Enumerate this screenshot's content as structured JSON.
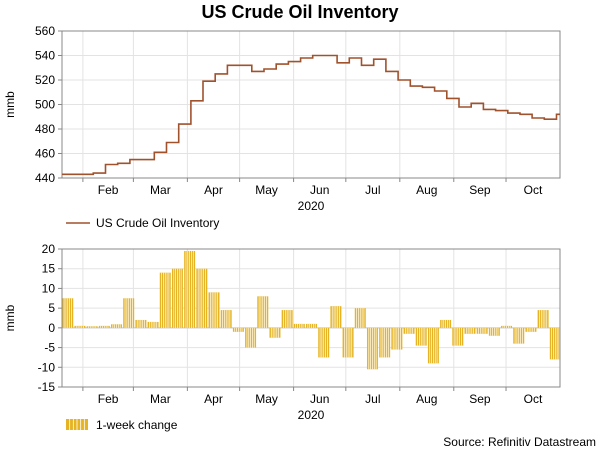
{
  "title": "US Crude Oil Inventory",
  "source": "Source: Refinitiv Datastream",
  "colors": {
    "line": "#a0522d",
    "bar": "#e6b422",
    "grid": "#e3e3e3"
  },
  "chart_data": [
    {
      "type": "line",
      "ylabel": "mmb",
      "xlabel": "2020",
      "ylim": [
        440,
        560
      ],
      "yticks": [
        440,
        460,
        480,
        500,
        520,
        540,
        560
      ],
      "month_ticks": [
        "Feb",
        "Mar",
        "Apr",
        "May",
        "Jun",
        "Jul",
        "Aug",
        "Sep",
        "Oct"
      ],
      "grid": true,
      "legend": "bottom-left",
      "series": [
        {
          "name": "US Crude Oil Inventory",
          "x": [
            "2020-01-24",
            "2020-01-31",
            "2020-02-07",
            "2020-02-14",
            "2020-02-21",
            "2020-02-28",
            "2020-03-06",
            "2020-03-13",
            "2020-03-20",
            "2020-03-27",
            "2020-04-03",
            "2020-04-10",
            "2020-04-17",
            "2020-04-24",
            "2020-05-01",
            "2020-05-08",
            "2020-05-15",
            "2020-05-22",
            "2020-05-29",
            "2020-06-05",
            "2020-06-12",
            "2020-06-19",
            "2020-06-26",
            "2020-07-03",
            "2020-07-10",
            "2020-07-17",
            "2020-07-24",
            "2020-07-31",
            "2020-08-07",
            "2020-08-14",
            "2020-08-21",
            "2020-08-28",
            "2020-09-04",
            "2020-09-11",
            "2020-09-18",
            "2020-09-25",
            "2020-10-02",
            "2020-10-09",
            "2020-10-16",
            "2020-10-23",
            "2020-10-30"
          ],
          "values": [
            443,
            443,
            444,
            451,
            452,
            455,
            455,
            461,
            469,
            484,
            503,
            519,
            525,
            532,
            532,
            527,
            529,
            533,
            535,
            538,
            540,
            540,
            534,
            538,
            532,
            537,
            527,
            520,
            515,
            514,
            511,
            505,
            498,
            501,
            496,
            495,
            493,
            492,
            489,
            488,
            492
          ]
        }
      ]
    },
    {
      "type": "bar",
      "ylabel": "mmb",
      "xlabel": "2020",
      "ylim": [
        -15,
        20
      ],
      "yticks": [
        -15,
        -10,
        -5,
        0,
        5,
        10,
        15,
        20
      ],
      "month_ticks": [
        "Feb",
        "Mar",
        "Apr",
        "May",
        "Jun",
        "Jul",
        "Aug",
        "Sep",
        "Oct"
      ],
      "grid": true,
      "legend": "bottom-left",
      "series": [
        {
          "name": "1-week change",
          "x": [
            "2020-01-24",
            "2020-01-31",
            "2020-02-07",
            "2020-02-14",
            "2020-02-21",
            "2020-02-28",
            "2020-03-06",
            "2020-03-13",
            "2020-03-20",
            "2020-03-27",
            "2020-04-03",
            "2020-04-10",
            "2020-04-17",
            "2020-04-24",
            "2020-05-01",
            "2020-05-08",
            "2020-05-15",
            "2020-05-22",
            "2020-05-29",
            "2020-06-05",
            "2020-06-12",
            "2020-06-19",
            "2020-06-26",
            "2020-07-03",
            "2020-07-10",
            "2020-07-17",
            "2020-07-24",
            "2020-07-31",
            "2020-08-07",
            "2020-08-14",
            "2020-08-21",
            "2020-08-28",
            "2020-09-04",
            "2020-09-11",
            "2020-09-18",
            "2020-09-25",
            "2020-10-02",
            "2020-10-09",
            "2020-10-16",
            "2020-10-23",
            "2020-10-30"
          ],
          "values": [
            7.5,
            0.5,
            0.4,
            0.5,
            0.9,
            7.5,
            2.0,
            1.5,
            14.0,
            15.0,
            19.5,
            15.0,
            9.0,
            4.5,
            -1.0,
            -5.0,
            8.0,
            -2.5,
            4.5,
            1.0,
            1.0,
            -7.5,
            5.5,
            -7.5,
            5.0,
            -10.5,
            -7.5,
            -5.5,
            -1.5,
            -4.5,
            -9.0,
            2.0,
            -4.5,
            -1.5,
            -1.5,
            -2.0,
            0.5,
            -4.0,
            -1.0,
            4.5,
            -8.0
          ]
        }
      ]
    }
  ]
}
